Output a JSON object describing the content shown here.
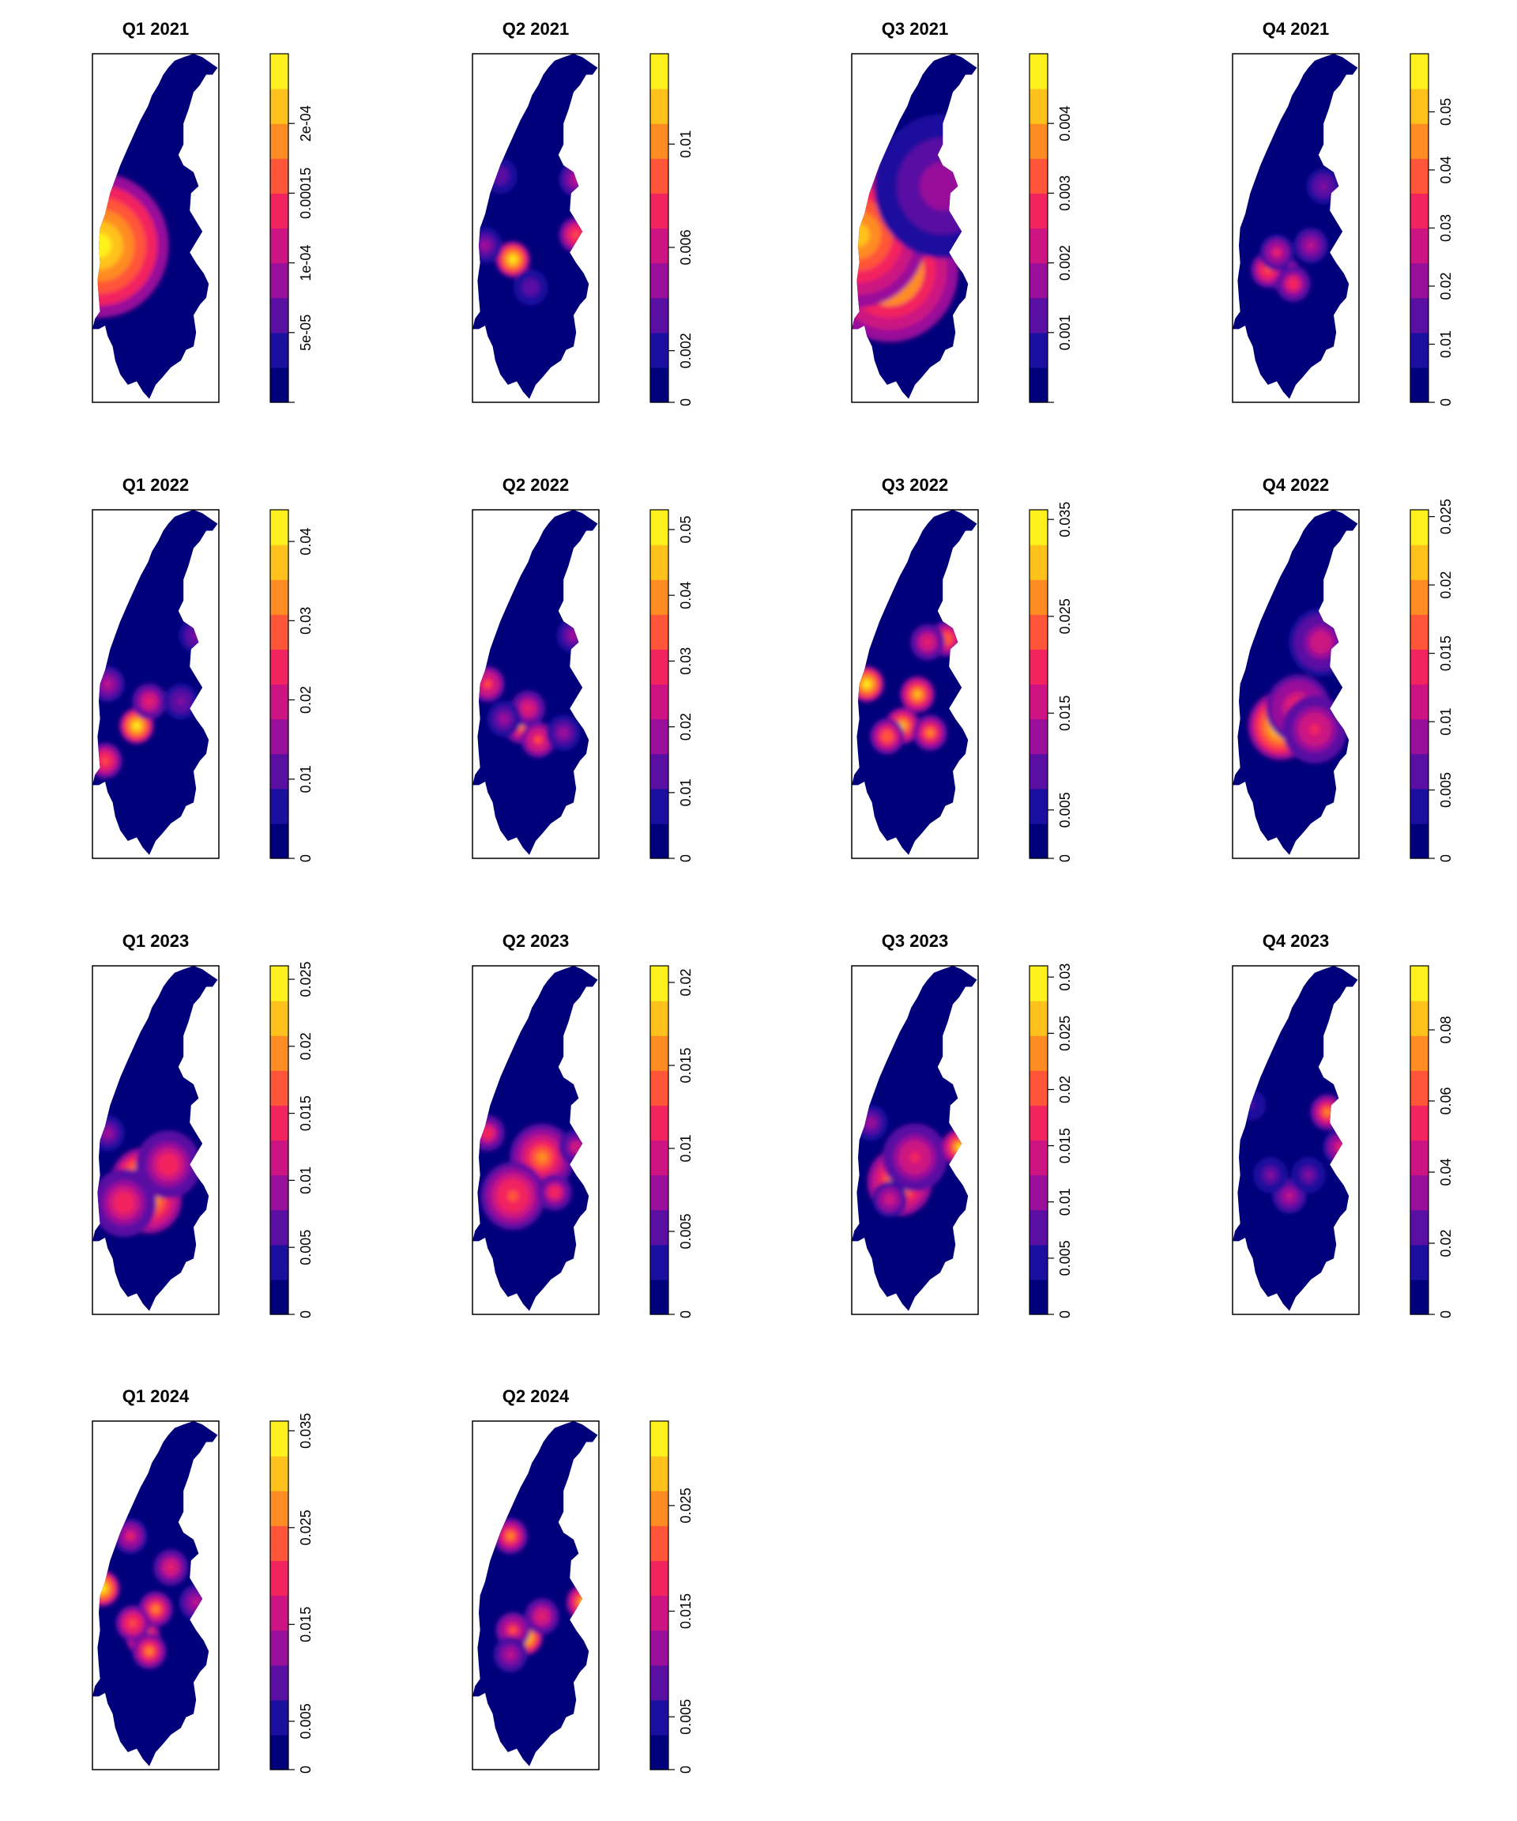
{
  "palette": [
    "#00007a",
    "#1a0f9e",
    "#5a0fa3",
    "#98109a",
    "#cc1482",
    "#f2245f",
    "#ff5538",
    "#ff8c23",
    "#ffc21c",
    "#fff11f"
  ],
  "chart_data": [
    {
      "type": "heatmap",
      "title": "Q1 2021",
      "colorbar_max": 0.00025,
      "colorbar_ticks": [
        {
          "value": 0,
          "label": ""
        },
        {
          "value": 5e-05,
          "label": "5e-05"
        },
        {
          "value": 0.0001,
          "label": "1e-04"
        },
        {
          "value": 0.00015,
          "label": "0.00015"
        },
        {
          "value": 0.0002,
          "label": "2e-04"
        }
      ],
      "hotspots": [
        {
          "x": 0.06,
          "y": 0.55,
          "value": 0.00025,
          "spread": "broad"
        }
      ]
    },
    {
      "type": "heatmap",
      "title": "Q2 2021",
      "colorbar_max": 0.0135,
      "colorbar_ticks": [
        {
          "value": 0,
          "label": "0"
        },
        {
          "value": 0.002,
          "label": "0.002"
        },
        {
          "value": 0.006,
          "label": "0.006"
        },
        {
          "value": 0.01,
          "label": "0.01"
        }
      ],
      "hotspots": [
        {
          "x": 0.32,
          "y": 0.59,
          "value": 0.0135,
          "spread": "local"
        },
        {
          "x": 0.82,
          "y": 0.52,
          "value": 0.009,
          "spread": "local"
        },
        {
          "x": 0.82,
          "y": 0.36,
          "value": 0.006,
          "spread": "local"
        },
        {
          "x": 0.46,
          "y": 0.67,
          "value": 0.004,
          "spread": "local"
        },
        {
          "x": 0.1,
          "y": 0.55,
          "value": 0.005,
          "spread": "local"
        },
        {
          "x": 0.22,
          "y": 0.35,
          "value": 0.004,
          "spread": "local"
        }
      ]
    },
    {
      "type": "heatmap",
      "title": "Q3 2021",
      "colorbar_max": 0.005,
      "colorbar_ticks": [
        {
          "value": 0,
          "label": ""
        },
        {
          "value": 0.001,
          "label": "0.001"
        },
        {
          "value": 0.002,
          "label": "0.002"
        },
        {
          "value": 0.003,
          "label": "0.003"
        },
        {
          "value": 0.004,
          "label": "0.004"
        }
      ],
      "hotspots": [
        {
          "x": 0.3,
          "y": 0.62,
          "value": 0.0048,
          "spread": "broad"
        },
        {
          "x": 0.05,
          "y": 0.52,
          "value": 0.004,
          "spread": "broad"
        },
        {
          "x": 0.72,
          "y": 0.38,
          "value": 0.0018,
          "spread": "broad"
        }
      ]
    },
    {
      "type": "heatmap",
      "title": "Q4 2021",
      "colorbar_max": 0.06,
      "colorbar_ticks": [
        {
          "value": 0,
          "label": "0"
        },
        {
          "value": 0.01,
          "label": "0.01"
        },
        {
          "value": 0.02,
          "label": "0.02"
        },
        {
          "value": 0.03,
          "label": "0.03"
        },
        {
          "value": 0.04,
          "label": "0.04"
        },
        {
          "value": 0.05,
          "label": "0.05"
        }
      ],
      "hotspots": [
        {
          "x": 0.4,
          "y": 0.63,
          "value": 0.045,
          "spread": "local"
        },
        {
          "x": 0.28,
          "y": 0.62,
          "value": 0.04,
          "spread": "local"
        },
        {
          "x": 0.48,
          "y": 0.66,
          "value": 0.035,
          "spread": "local"
        },
        {
          "x": 0.35,
          "y": 0.57,
          "value": 0.03,
          "spread": "local"
        },
        {
          "x": 0.62,
          "y": 0.55,
          "value": 0.025,
          "spread": "local"
        },
        {
          "x": 0.72,
          "y": 0.38,
          "value": 0.02,
          "spread": "local"
        }
      ]
    },
    {
      "type": "heatmap",
      "title": "Q1 2022",
      "colorbar_max": 0.044,
      "colorbar_ticks": [
        {
          "value": 0,
          "label": "0"
        },
        {
          "value": 0.01,
          "label": "0.01"
        },
        {
          "value": 0.02,
          "label": "0.02"
        },
        {
          "value": 0.03,
          "label": "0.03"
        },
        {
          "value": 0.04,
          "label": "0.04"
        }
      ],
      "hotspots": [
        {
          "x": 0.35,
          "y": 0.62,
          "value": 0.044,
          "spread": "local"
        },
        {
          "x": 0.45,
          "y": 0.55,
          "value": 0.025,
          "spread": "local"
        },
        {
          "x": 0.1,
          "y": 0.72,
          "value": 0.03,
          "spread": "local"
        },
        {
          "x": 0.12,
          "y": 0.5,
          "value": 0.02,
          "spread": "local"
        },
        {
          "x": 0.7,
          "y": 0.55,
          "value": 0.015,
          "spread": "local"
        },
        {
          "x": 0.82,
          "y": 0.36,
          "value": 0.015,
          "spread": "local"
        }
      ]
    },
    {
      "type": "heatmap",
      "title": "Q2 2022",
      "colorbar_max": 0.053,
      "colorbar_ticks": [
        {
          "value": 0,
          "label": "0"
        },
        {
          "value": 0.01,
          "label": "0.01"
        },
        {
          "value": 0.02,
          "label": "0.02"
        },
        {
          "value": 0.03,
          "label": "0.03"
        },
        {
          "value": 0.04,
          "label": "0.04"
        },
        {
          "value": 0.05,
          "label": "0.05"
        }
      ],
      "hotspots": [
        {
          "x": 0.38,
          "y": 0.62,
          "value": 0.04,
          "spread": "local"
        },
        {
          "x": 0.52,
          "y": 0.66,
          "value": 0.035,
          "spread": "local"
        },
        {
          "x": 0.44,
          "y": 0.57,
          "value": 0.03,
          "spread": "local"
        },
        {
          "x": 0.12,
          "y": 0.5,
          "value": 0.035,
          "spread": "local"
        },
        {
          "x": 0.25,
          "y": 0.6,
          "value": 0.02,
          "spread": "local"
        },
        {
          "x": 0.72,
          "y": 0.64,
          "value": 0.02,
          "spread": "local"
        },
        {
          "x": 0.8,
          "y": 0.36,
          "value": 0.02,
          "spread": "local"
        }
      ]
    },
    {
      "type": "heatmap",
      "title": "Q3 2022",
      "colorbar_max": 0.036,
      "colorbar_ticks": [
        {
          "value": 0,
          "label": "0"
        },
        {
          "value": 0.005,
          "label": "0.005"
        },
        {
          "value": 0.015,
          "label": "0.015"
        },
        {
          "value": 0.025,
          "label": "0.025"
        },
        {
          "value": 0.035,
          "label": "0.035"
        }
      ],
      "hotspots": [
        {
          "x": 0.12,
          "y": 0.5,
          "value": 0.036,
          "spread": "local"
        },
        {
          "x": 0.52,
          "y": 0.53,
          "value": 0.03,
          "spread": "local"
        },
        {
          "x": 0.4,
          "y": 0.62,
          "value": 0.03,
          "spread": "local"
        },
        {
          "x": 0.62,
          "y": 0.64,
          "value": 0.028,
          "spread": "local"
        },
        {
          "x": 0.28,
          "y": 0.65,
          "value": 0.025,
          "spread": "local"
        },
        {
          "x": 0.75,
          "y": 0.37,
          "value": 0.025,
          "spread": "local"
        },
        {
          "x": 0.6,
          "y": 0.38,
          "value": 0.02,
          "spread": "local"
        }
      ]
    },
    {
      "type": "heatmap",
      "title": "Q4 2022",
      "colorbar_max": 0.0255,
      "colorbar_ticks": [
        {
          "value": 0,
          "label": "0"
        },
        {
          "value": 0.005,
          "label": "0.005"
        },
        {
          "value": 0.01,
          "label": "0.01"
        },
        {
          "value": 0.015,
          "label": "0.015"
        },
        {
          "value": 0.02,
          "label": "0.02"
        },
        {
          "value": 0.025,
          "label": "0.025"
        }
      ],
      "hotspots": [
        {
          "x": 0.38,
          "y": 0.62,
          "value": 0.0255,
          "spread": "medium"
        },
        {
          "x": 0.52,
          "y": 0.57,
          "value": 0.016,
          "spread": "medium"
        },
        {
          "x": 0.65,
          "y": 0.63,
          "value": 0.014,
          "spread": "medium"
        },
        {
          "x": 0.7,
          "y": 0.38,
          "value": 0.012,
          "spread": "medium"
        }
      ]
    },
    {
      "type": "heatmap",
      "title": "Q1 2023",
      "colorbar_max": 0.026,
      "colorbar_ticks": [
        {
          "value": 0,
          "label": "0"
        },
        {
          "value": 0.005,
          "label": "0.005"
        },
        {
          "value": 0.01,
          "label": "0.01"
        },
        {
          "value": 0.015,
          "label": "0.015"
        },
        {
          "value": 0.02,
          "label": "0.02"
        },
        {
          "value": 0.025,
          "label": "0.025"
        }
      ],
      "hotspots": [
        {
          "x": 0.4,
          "y": 0.62,
          "value": 0.026,
          "spread": "medium"
        },
        {
          "x": 0.45,
          "y": 0.67,
          "value": 0.023,
          "spread": "medium"
        },
        {
          "x": 0.6,
          "y": 0.57,
          "value": 0.015,
          "spread": "medium"
        },
        {
          "x": 0.25,
          "y": 0.68,
          "value": 0.015,
          "spread": "medium"
        },
        {
          "x": 0.12,
          "y": 0.48,
          "value": 0.01,
          "spread": "local"
        }
      ]
    },
    {
      "type": "heatmap",
      "title": "Q2 2023",
      "colorbar_max": 0.021,
      "colorbar_ticks": [
        {
          "value": 0,
          "label": "0"
        },
        {
          "value": 0.005,
          "label": "0.005"
        },
        {
          "value": 0.01,
          "label": "0.01"
        },
        {
          "value": 0.015,
          "label": "0.015"
        },
        {
          "value": 0.02,
          "label": "0.02"
        }
      ],
      "hotspots": [
        {
          "x": 0.4,
          "y": 0.61,
          "value": 0.021,
          "spread": "local"
        },
        {
          "x": 0.55,
          "y": 0.55,
          "value": 0.015,
          "spread": "medium"
        },
        {
          "x": 0.32,
          "y": 0.66,
          "value": 0.014,
          "spread": "medium"
        },
        {
          "x": 0.12,
          "y": 0.48,
          "value": 0.012,
          "spread": "local"
        },
        {
          "x": 0.65,
          "y": 0.65,
          "value": 0.012,
          "spread": "local"
        },
        {
          "x": 0.82,
          "y": 0.52,
          "value": 0.01,
          "spread": "local"
        }
      ]
    },
    {
      "type": "heatmap",
      "title": "Q3 2023",
      "colorbar_max": 0.031,
      "colorbar_ticks": [
        {
          "value": 0,
          "label": "0"
        },
        {
          "value": 0.005,
          "label": "0.005"
        },
        {
          "value": 0.01,
          "label": "0.01"
        },
        {
          "value": 0.015,
          "label": "0.015"
        },
        {
          "value": 0.02,
          "label": "0.02"
        },
        {
          "value": 0.025,
          "label": "0.025"
        },
        {
          "value": 0.03,
          "label": "0.03"
        }
      ],
      "hotspots": [
        {
          "x": 0.38,
          "y": 0.62,
          "value": 0.025,
          "spread": "medium"
        },
        {
          "x": 0.5,
          "y": 0.55,
          "value": 0.017,
          "spread": "medium"
        },
        {
          "x": 0.85,
          "y": 0.52,
          "value": 0.028,
          "spread": "local"
        },
        {
          "x": 0.15,
          "y": 0.45,
          "value": 0.012,
          "spread": "local"
        },
        {
          "x": 0.3,
          "y": 0.67,
          "value": 0.015,
          "spread": "local"
        }
      ]
    },
    {
      "type": "heatmap",
      "title": "Q4 2023",
      "colorbar_max": 0.098,
      "colorbar_ticks": [
        {
          "value": 0,
          "label": "0"
        },
        {
          "value": 0.02,
          "label": "0.02"
        },
        {
          "value": 0.04,
          "label": "0.04"
        },
        {
          "value": 0.06,
          "label": "0.06"
        },
        {
          "value": 0.08,
          "label": "0.08"
        }
      ],
      "hotspots": [
        {
          "x": 0.75,
          "y": 0.42,
          "value": 0.07,
          "spread": "local"
        },
        {
          "x": 0.85,
          "y": 0.52,
          "value": 0.05,
          "spread": "local"
        },
        {
          "x": 0.45,
          "y": 0.66,
          "value": 0.04,
          "spread": "local"
        },
        {
          "x": 0.3,
          "y": 0.6,
          "value": 0.03,
          "spread": "local"
        },
        {
          "x": 0.6,
          "y": 0.6,
          "value": 0.03,
          "spread": "local"
        },
        {
          "x": 0.15,
          "y": 0.4,
          "value": 0.02,
          "spread": "local"
        }
      ]
    },
    {
      "type": "heatmap",
      "title": "Q1 2024",
      "colorbar_max": 0.036,
      "colorbar_ticks": [
        {
          "value": 0,
          "label": "0"
        },
        {
          "value": 0.005,
          "label": "0.005"
        },
        {
          "value": 0.015,
          "label": "0.015"
        },
        {
          "value": 0.025,
          "label": "0.025"
        },
        {
          "value": 0.035,
          "label": "0.035"
        }
      ],
      "hotspots": [
        {
          "x": 0.08,
          "y": 0.48,
          "value": 0.036,
          "spread": "local"
        },
        {
          "x": 0.4,
          "y": 0.62,
          "value": 0.03,
          "spread": "local"
        },
        {
          "x": 0.5,
          "y": 0.54,
          "value": 0.028,
          "spread": "local"
        },
        {
          "x": 0.32,
          "y": 0.58,
          "value": 0.024,
          "spread": "local"
        },
        {
          "x": 0.45,
          "y": 0.66,
          "value": 0.026,
          "spread": "local"
        },
        {
          "x": 0.62,
          "y": 0.42,
          "value": 0.02,
          "spread": "local"
        },
        {
          "x": 0.3,
          "y": 0.33,
          "value": 0.018,
          "spread": "local"
        },
        {
          "x": 0.82,
          "y": 0.52,
          "value": 0.015,
          "spread": "local"
        }
      ]
    },
    {
      "type": "heatmap",
      "title": "Q2 2024",
      "colorbar_max": 0.033,
      "colorbar_ticks": [
        {
          "value": 0,
          "label": "0"
        },
        {
          "value": 0.005,
          "label": "0.005"
        },
        {
          "value": 0.015,
          "label": "0.015"
        },
        {
          "value": 0.025,
          "label": "0.025"
        }
      ],
      "hotspots": [
        {
          "x": 0.42,
          "y": 0.62,
          "value": 0.033,
          "spread": "local"
        },
        {
          "x": 0.88,
          "y": 0.52,
          "value": 0.03,
          "spread": "local"
        },
        {
          "x": 0.3,
          "y": 0.33,
          "value": 0.025,
          "spread": "local"
        },
        {
          "x": 0.32,
          "y": 0.6,
          "value": 0.02,
          "spread": "local"
        },
        {
          "x": 0.55,
          "y": 0.56,
          "value": 0.018,
          "spread": "local"
        },
        {
          "x": 0.3,
          "y": 0.67,
          "value": 0.015,
          "spread": "local"
        }
      ]
    }
  ]
}
